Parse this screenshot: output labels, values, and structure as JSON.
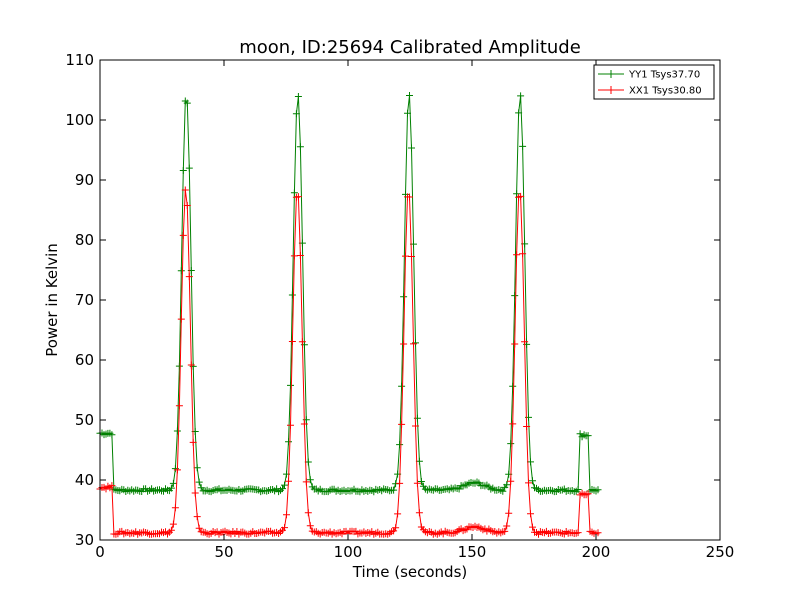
{
  "chart_data": {
    "type": "line",
    "title": "moon, ID:25694 Calibrated Amplitude",
    "xlabel": "Time (seconds)",
    "ylabel": "Power in Kelvin",
    "xlim": [
      0,
      250
    ],
    "ylim": [
      30,
      110
    ],
    "xticks": [
      0,
      50,
      100,
      150,
      200,
      250
    ],
    "yticks": [
      30,
      40,
      50,
      60,
      70,
      80,
      90,
      100,
      110
    ],
    "grid": false,
    "legend_position": "top-right",
    "marker": "plus",
    "series": [
      {
        "name": "YY1 Tsys37.70",
        "color": "#008000",
        "baseline": 38.3,
        "level_start": 47.8,
        "level_end_value": 47.5,
        "peak_centers": [
          34.8,
          79.8,
          124.6,
          169.4
        ],
        "peak_value": 104.5,
        "bump": {
          "center": 151,
          "height": 1.2
        }
      },
      {
        "name": "XX1 Tsys30.80",
        "color": "#ff0000",
        "baseline": 31.2,
        "level_start": 38.8,
        "level_end_value": 37.5,
        "peak_centers": [
          34.6,
          79.6,
          124.4,
          169.2
        ],
        "peak_value": 88.5,
        "bump": {
          "center": 151,
          "height": 1.0
        }
      }
    ],
    "x_range": [
      0,
      201
    ],
    "step": 0.8
  }
}
